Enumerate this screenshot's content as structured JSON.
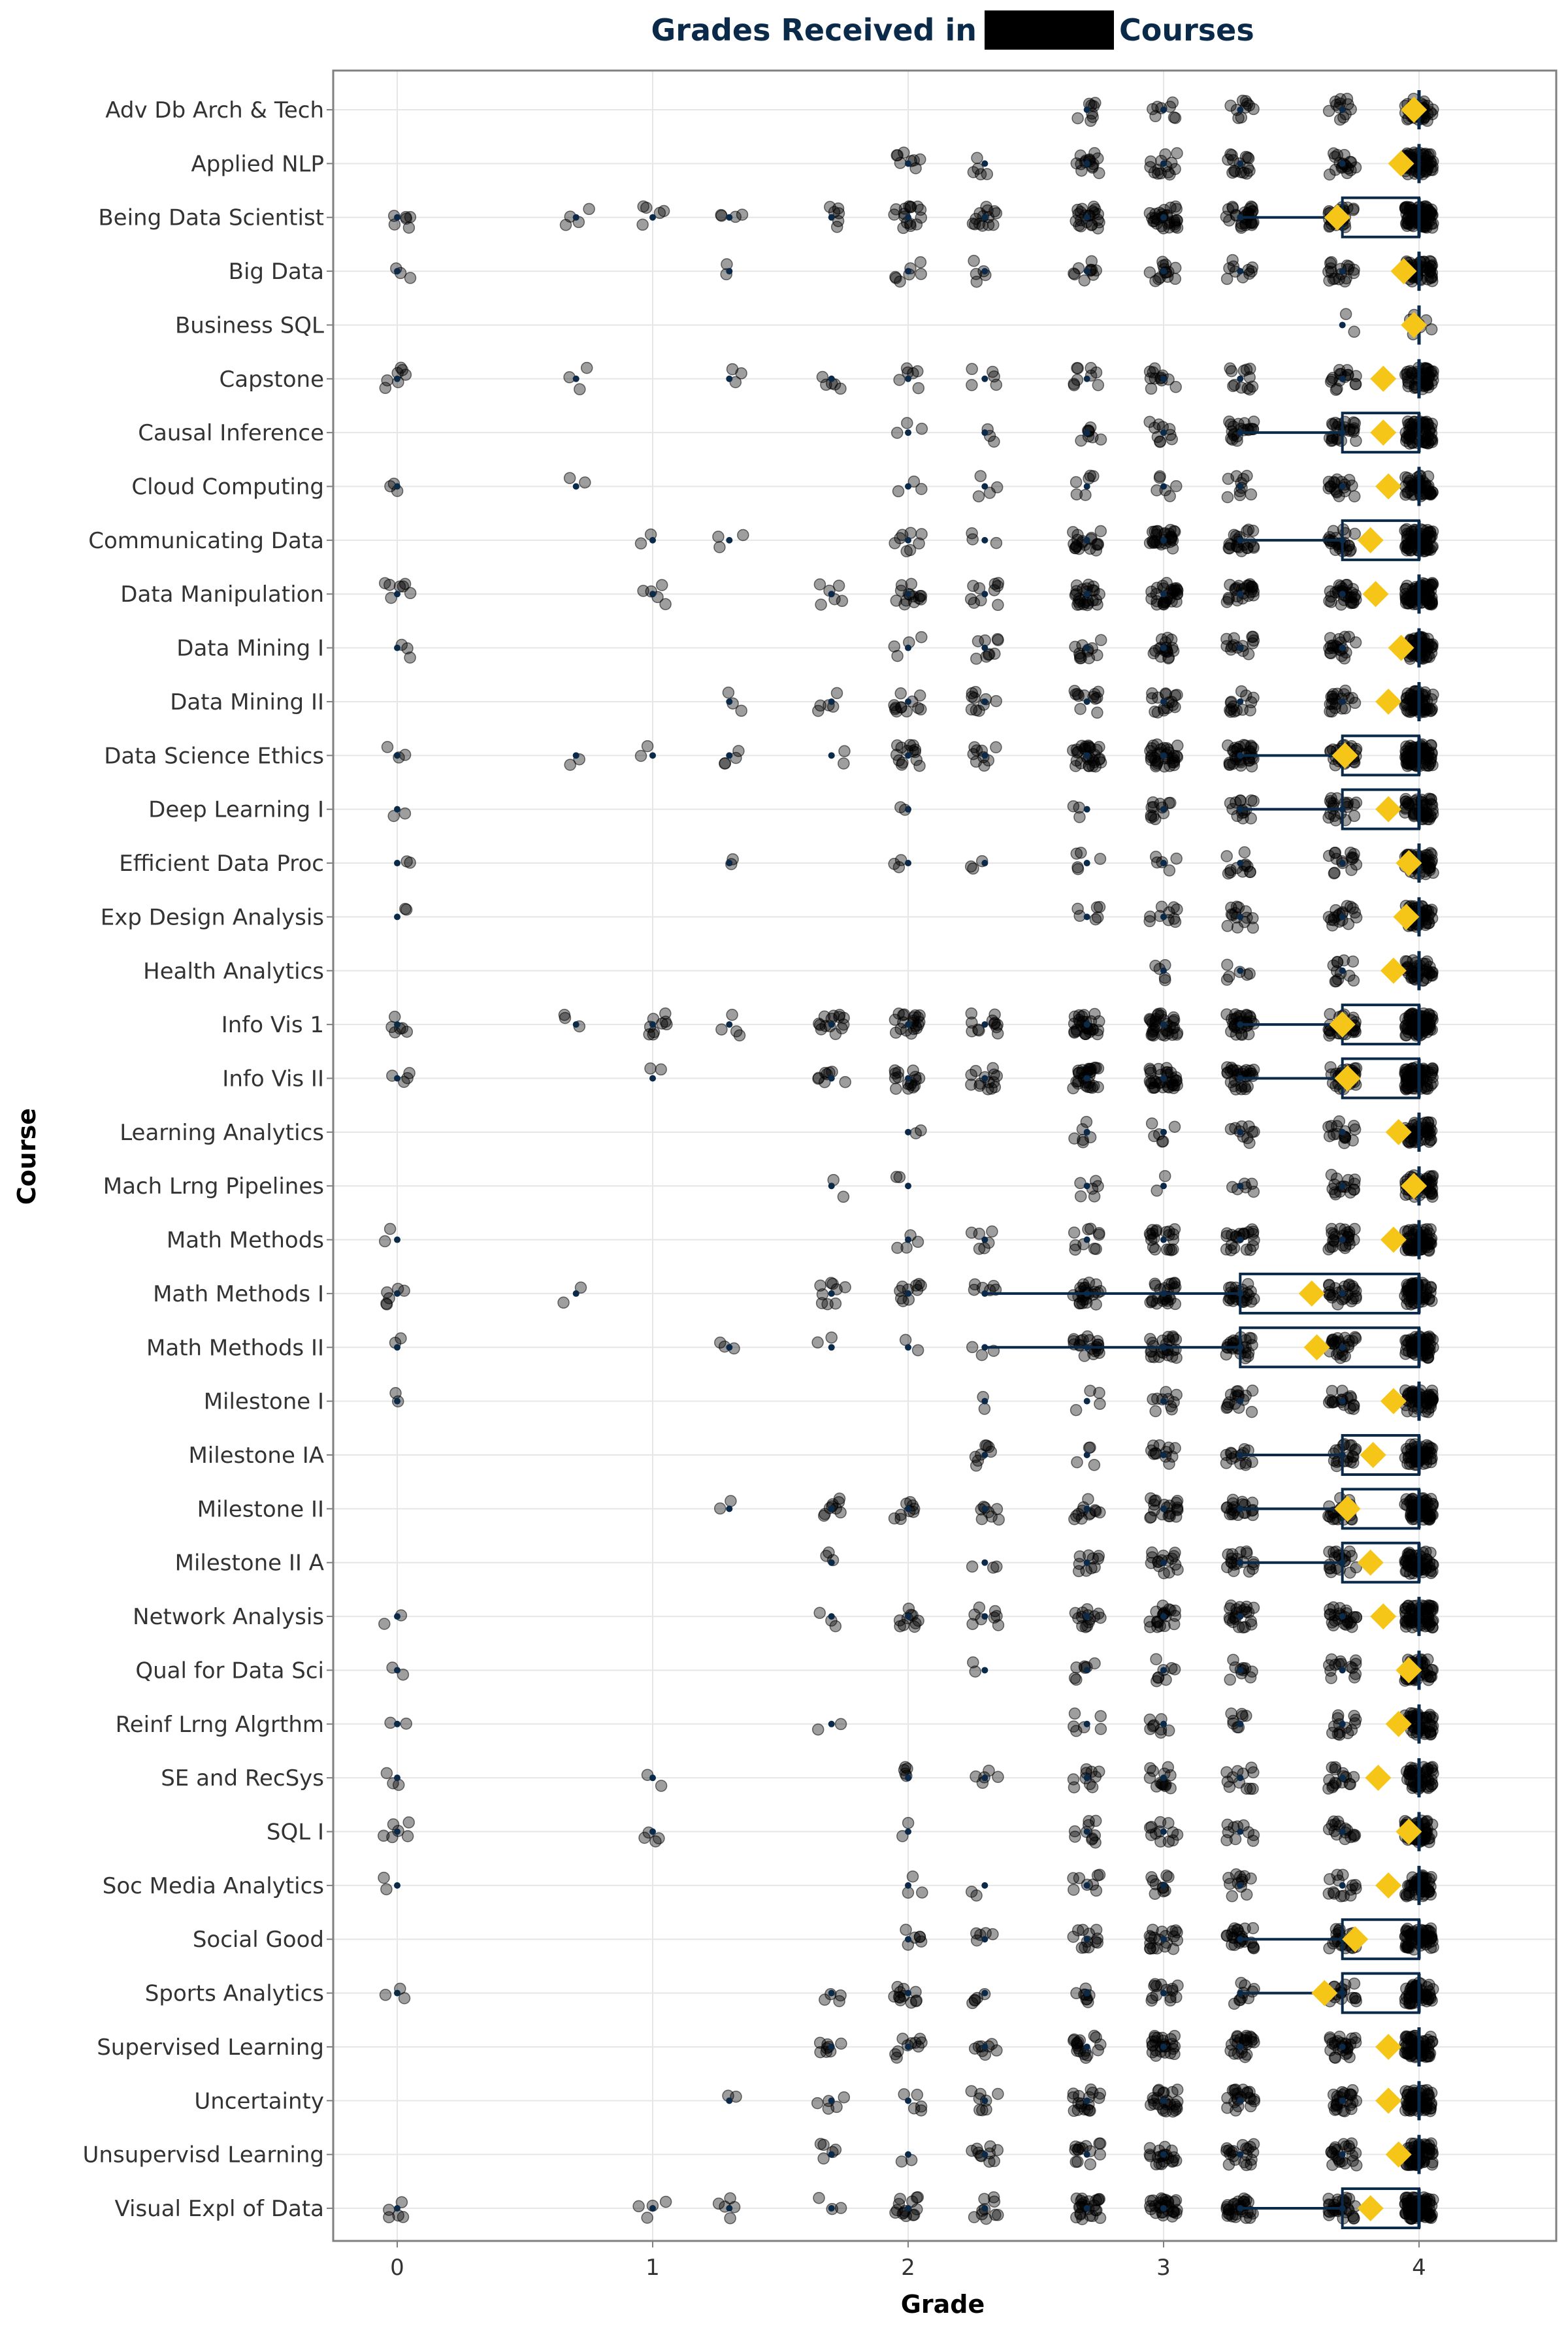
{
  "chart_data": {
    "type": "scatter",
    "title_before": "Grades Received in",
    "title_after": "Courses",
    "xlabel": "Grade",
    "ylabel": "Course",
    "xlim": [
      -0.25,
      5.25
    ],
    "xticks": [
      "0",
      "1",
      "2",
      "3",
      "4"
    ],
    "grid": true,
    "colors": {
      "points": "#333333",
      "mean_marker": "#f5c518",
      "box": "#0b2a4a",
      "median_dot": "#0b2a4a"
    },
    "grade_levels": [
      0,
      0.7,
      1.0,
      1.3,
      1.7,
      2.0,
      2.3,
      2.7,
      3.0,
      3.3,
      3.7,
      4.0
    ],
    "courses": [
      {
        "name": "Adv Db Arch & Tech",
        "counts": [
          0,
          0,
          0,
          0,
          0,
          0,
          0,
          8,
          8,
          10,
          12,
          40
        ],
        "q1": 4.0,
        "median": 4.0,
        "q3": 4.0,
        "mean": 3.98
      },
      {
        "name": "Applied NLP",
        "counts": [
          0,
          0,
          0,
          0,
          0,
          8,
          5,
          15,
          14,
          16,
          18,
          60
        ],
        "q1": 4.0,
        "median": 4.0,
        "q3": 4.0,
        "mean": 3.93
      },
      {
        "name": "Being Data Scientist",
        "counts": [
          6,
          4,
          5,
          4,
          6,
          16,
          14,
          22,
          30,
          30,
          30,
          80
        ],
        "q1": 3.7,
        "median": 4.0,
        "q3": 4.0,
        "mean": 3.68
      },
      {
        "name": "Big Data",
        "counts": [
          3,
          0,
          0,
          2,
          0,
          7,
          5,
          10,
          14,
          10,
          18,
          50
        ],
        "q1": 4.0,
        "median": 4.0,
        "q3": 4.0,
        "mean": 3.94
      },
      {
        "name": "Business SQL",
        "counts": [
          0,
          0,
          0,
          0,
          0,
          0,
          0,
          0,
          0,
          0,
          2,
          8
        ],
        "q1": 4.0,
        "median": 4.0,
        "q3": 4.0,
        "mean": 3.98
      },
      {
        "name": "Capstone",
        "counts": [
          7,
          3,
          0,
          3,
          5,
          6,
          5,
          9,
          12,
          12,
          16,
          50
        ],
        "q1": 4.0,
        "median": 4.0,
        "q3": 4.0,
        "mean": 3.86
      },
      {
        "name": "Causal Inference",
        "counts": [
          0,
          0,
          0,
          0,
          0,
          3,
          3,
          8,
          10,
          20,
          25,
          60
        ],
        "q1": 3.7,
        "median": 4.0,
        "q3": 4.0,
        "mean": 3.86
      },
      {
        "name": "Cloud Computing",
        "counts": [
          3,
          2,
          0,
          0,
          0,
          3,
          4,
          6,
          6,
          10,
          18,
          50
        ],
        "q1": 4.0,
        "median": 4.0,
        "q3": 4.0,
        "mean": 3.88
      },
      {
        "name": "Communicating Data",
        "counts": [
          0,
          0,
          2,
          3,
          0,
          8,
          3,
          20,
          28,
          22,
          25,
          70
        ],
        "q1": 3.7,
        "median": 4.0,
        "q3": 4.0,
        "mean": 3.81
      },
      {
        "name": "Data Manipulation",
        "counts": [
          7,
          0,
          5,
          0,
          6,
          14,
          10,
          25,
          30,
          25,
          30,
          80
        ],
        "q1": 4.0,
        "median": 4.0,
        "q3": 4.0,
        "mean": 3.83
      },
      {
        "name": "Data Mining I",
        "counts": [
          3,
          0,
          0,
          0,
          0,
          4,
          9,
          12,
          18,
          14,
          20,
          60
        ],
        "q1": 4.0,
        "median": 4.0,
        "q3": 4.0,
        "mean": 3.93
      },
      {
        "name": "Data Mining II",
        "counts": [
          0,
          0,
          0,
          3,
          5,
          12,
          10,
          12,
          16,
          14,
          20,
          60
        ],
        "q1": 4.0,
        "median": 4.0,
        "q3": 4.0,
        "mean": 3.88
      },
      {
        "name": "Data Science Ethics",
        "counts": [
          3,
          2,
          2,
          4,
          2,
          14,
          9,
          30,
          34,
          34,
          30,
          80
        ],
        "q1": 3.7,
        "median": 4.0,
        "q3": 4.0,
        "mean": 3.71
      },
      {
        "name": "Deep Learning I",
        "counts": [
          2,
          0,
          0,
          0,
          0,
          2,
          0,
          3,
          12,
          14,
          20,
          50
        ],
        "q1": 3.7,
        "median": 4.0,
        "q3": 4.0,
        "mean": 3.88
      },
      {
        "name": "Efficient Data Proc",
        "counts": [
          2,
          0,
          0,
          2,
          0,
          3,
          3,
          5,
          5,
          12,
          15,
          50
        ],
        "q1": 4.0,
        "median": 4.0,
        "q3": 4.0,
        "mean": 3.96
      },
      {
        "name": "Exp Design Analysis",
        "counts": [
          2,
          0,
          0,
          0,
          0,
          0,
          0,
          6,
          10,
          14,
          18,
          55
        ],
        "q1": 4.0,
        "median": 4.0,
        "q3": 4.0,
        "mean": 3.95
      },
      {
        "name": "Health Analytics",
        "counts": [
          0,
          0,
          0,
          0,
          0,
          0,
          0,
          0,
          5,
          6,
          12,
          40
        ],
        "q1": 4.0,
        "median": 4.0,
        "q3": 4.0,
        "mean": 3.9
      },
      {
        "name": "Info Vis 1",
        "counts": [
          6,
          3,
          9,
          4,
          14,
          20,
          12,
          30,
          34,
          30,
          30,
          80
        ],
        "q1": 3.7,
        "median": 4.0,
        "q3": 4.0,
        "mean": 3.7
      },
      {
        "name": "Info Vis II",
        "counts": [
          4,
          0,
          2,
          0,
          8,
          16,
          14,
          30,
          34,
          30,
          30,
          80
        ],
        "q1": 3.7,
        "median": 4.0,
        "q3": 4.0,
        "mean": 3.72
      },
      {
        "name": "Learning Analytics",
        "counts": [
          0,
          0,
          0,
          0,
          0,
          2,
          0,
          6,
          6,
          10,
          16,
          50
        ],
        "q1": 4.0,
        "median": 4.0,
        "q3": 4.0,
        "mean": 3.92
      },
      {
        "name": "Mach Lrng Pipelines",
        "counts": [
          0,
          0,
          0,
          0,
          2,
          2,
          0,
          6,
          2,
          6,
          16,
          50
        ],
        "q1": 4.0,
        "median": 4.0,
        "q3": 4.0,
        "mean": 3.98
      },
      {
        "name": "Math Methods",
        "counts": [
          2,
          0,
          0,
          0,
          0,
          4,
          6,
          10,
          20,
          22,
          25,
          65
        ],
        "q1": 4.0,
        "median": 4.0,
        "q3": 4.0,
        "mean": 3.9
      },
      {
        "name": "Math Methods I",
        "counts": [
          6,
          2,
          0,
          0,
          9,
          10,
          6,
          25,
          25,
          25,
          25,
          60
        ],
        "q1": 3.3,
        "median": 4.0,
        "q3": 4.0,
        "mean": 3.58
      },
      {
        "name": "Math Methods II",
        "counts": [
          2,
          0,
          0,
          3,
          2,
          2,
          3,
          20,
          25,
          25,
          25,
          60
        ],
        "q1": 3.3,
        "median": 4.0,
        "q3": 4.0,
        "mean": 3.6
      },
      {
        "name": "Milestone I",
        "counts": [
          2,
          0,
          0,
          0,
          0,
          0,
          2,
          4,
          10,
          16,
          18,
          55
        ],
        "q1": 4.0,
        "median": 4.0,
        "q3": 4.0,
        "mean": 3.9
      },
      {
        "name": "Milestone IA",
        "counts": [
          0,
          0,
          0,
          0,
          0,
          0,
          8,
          4,
          12,
          14,
          20,
          55
        ],
        "q1": 3.7,
        "median": 4.0,
        "q3": 4.0,
        "mean": 3.82
      },
      {
        "name": "Milestone II",
        "counts": [
          0,
          0,
          0,
          2,
          9,
          9,
          8,
          12,
          20,
          20,
          25,
          65
        ],
        "q1": 3.7,
        "median": 4.0,
        "q3": 4.0,
        "mean": 3.72
      },
      {
        "name": "Milestone II A",
        "counts": [
          0,
          0,
          0,
          0,
          3,
          0,
          3,
          10,
          16,
          18,
          20,
          55
        ],
        "q1": 3.7,
        "median": 4.0,
        "q3": 4.0,
        "mean": 3.81
      },
      {
        "name": "Network Analysis",
        "counts": [
          2,
          0,
          0,
          0,
          3,
          10,
          8,
          14,
          20,
          22,
          25,
          65
        ],
        "q1": 4.0,
        "median": 4.0,
        "q3": 4.0,
        "mean": 3.86
      },
      {
        "name": "Qual for Data Sci",
        "counts": [
          2,
          0,
          0,
          0,
          0,
          0,
          2,
          7,
          8,
          10,
          14,
          50
        ],
        "q1": 4.0,
        "median": 4.0,
        "q3": 4.0,
        "mean": 3.96
      },
      {
        "name": "Reinf Lrng Algrthm",
        "counts": [
          2,
          0,
          0,
          0,
          2,
          0,
          0,
          6,
          8,
          8,
          14,
          50
        ],
        "q1": 4.0,
        "median": 4.0,
        "q3": 4.0,
        "mean": 3.92
      },
      {
        "name": "SE and RecSys",
        "counts": [
          3,
          0,
          2,
          0,
          0,
          5,
          5,
          10,
          14,
          12,
          16,
          50
        ],
        "q1": 4.0,
        "median": 4.0,
        "q3": 4.0,
        "mean": 3.84
      },
      {
        "name": "SQL I",
        "counts": [
          6,
          0,
          4,
          0,
          0,
          2,
          0,
          10,
          12,
          10,
          16,
          55
        ],
        "q1": 4.0,
        "median": 4.0,
        "q3": 4.0,
        "mean": 3.96
      },
      {
        "name": "Soc Media Analytics",
        "counts": [
          2,
          0,
          0,
          0,
          0,
          3,
          2,
          8,
          10,
          12,
          14,
          50
        ],
        "q1": 4.0,
        "median": 4.0,
        "q3": 4.0,
        "mean": 3.88
      },
      {
        "name": "Social Good",
        "counts": [
          0,
          0,
          0,
          0,
          0,
          6,
          5,
          12,
          20,
          24,
          24,
          60
        ],
        "q1": 3.7,
        "median": 4.0,
        "q3": 4.0,
        "mean": 3.75
      },
      {
        "name": "Sports Analytics",
        "counts": [
          3,
          0,
          0,
          0,
          4,
          12,
          5,
          8,
          14,
          10,
          18,
          55
        ],
        "q1": 3.7,
        "median": 4.0,
        "q3": 4.0,
        "mean": 3.63
      },
      {
        "name": "Supervised Learning",
        "counts": [
          0,
          0,
          0,
          0,
          8,
          10,
          8,
          18,
          25,
          24,
          26,
          65
        ],
        "q1": 4.0,
        "median": 4.0,
        "q3": 4.0,
        "mean": 3.88
      },
      {
        "name": "Uncertainty",
        "counts": [
          0,
          0,
          0,
          2,
          5,
          5,
          8,
          18,
          25,
          22,
          25,
          65
        ],
        "q1": 4.0,
        "median": 4.0,
        "q3": 4.0,
        "mean": 3.88
      },
      {
        "name": "Unsupervisd Learning",
        "counts": [
          0,
          0,
          0,
          0,
          5,
          2,
          10,
          14,
          20,
          20,
          22,
          60
        ],
        "q1": 4.0,
        "median": 4.0,
        "q3": 4.0,
        "mean": 3.92
      },
      {
        "name": "Visual Expl of Data",
        "counts": [
          5,
          0,
          4,
          5,
          3,
          14,
          10,
          25,
          30,
          30,
          30,
          80
        ],
        "q1": 3.7,
        "median": 4.0,
        "q3": 4.0,
        "mean": 3.81
      }
    ]
  }
}
